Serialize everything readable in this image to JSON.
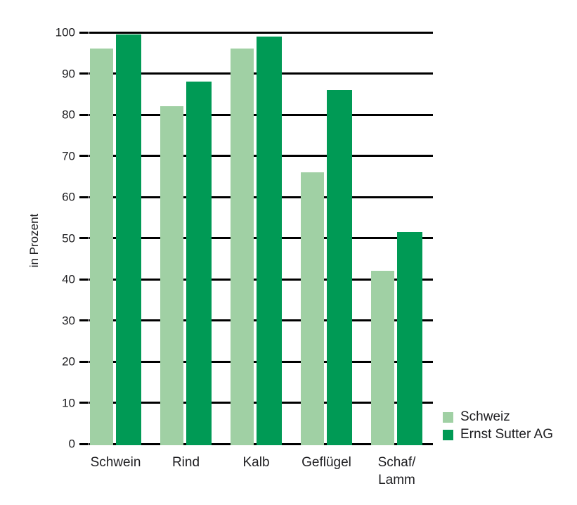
{
  "chart_data": {
    "type": "bar",
    "categories": [
      "Schwein",
      "Rind",
      "Kalb",
      "Geflügel",
      "Schaf/Lamm"
    ],
    "series": [
      {
        "name": "Schweiz",
        "color": "#a0d0a4",
        "values": [
          96,
          82,
          96,
          66,
          42
        ]
      },
      {
        "name": "Ernst Sutter AG",
        "color": "#009a55",
        "values": [
          99.5,
          88,
          99,
          86,
          51.5
        ]
      }
    ],
    "ylabel": "in Prozent",
    "ylim": [
      0,
      100
    ],
    "yticks": [
      0,
      10,
      20,
      30,
      40,
      50,
      60,
      70,
      80,
      90,
      100
    ],
    "grid": "horizontal",
    "legend_position": "bottom-right",
    "colors": {
      "gridline": "#000000",
      "text": "#1d1d20",
      "background": "#ffffff"
    }
  }
}
